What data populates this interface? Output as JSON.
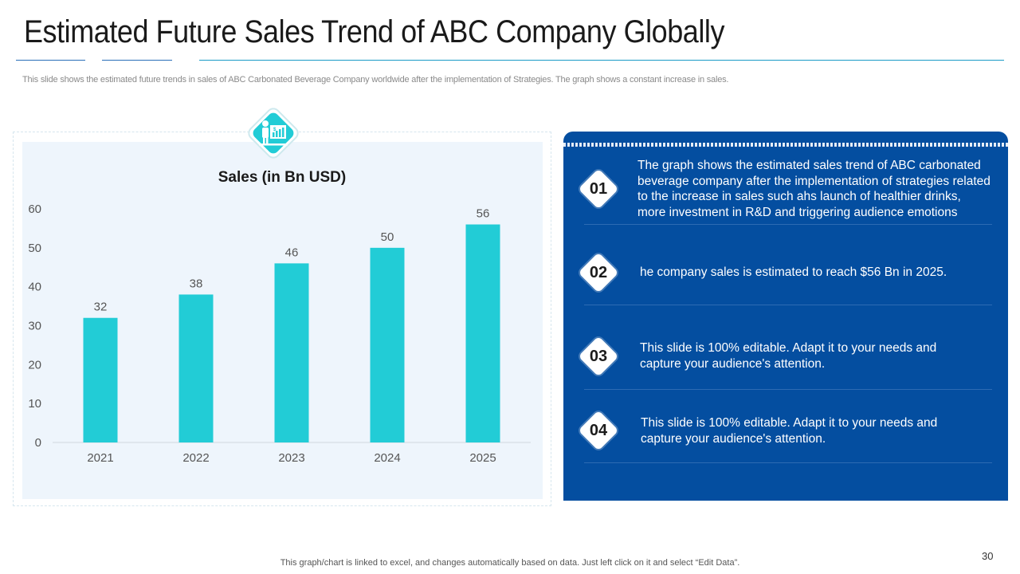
{
  "slide": {
    "title": "Estimated Future Sales Trend of ABC Company Globally",
    "subtitle": "This slide shows the estimated future trends in sales of ABC  Carbonated Beverage Company worldwide after the implementation of Strategies. The graph shows a constant increase in sales.",
    "footer": "This graph/chart is linked to excel,  and changes automatically based on data. Just left click on it and select “Edit Data”.",
    "page_number": "30"
  },
  "icon": {
    "name": "presenter-chart-icon"
  },
  "colors": {
    "bar": "#22ccd6",
    "panel": "#044ea0",
    "accent_rule": "#1a9bc7",
    "diamond": "#22ccd6"
  },
  "chart_data": {
    "type": "bar",
    "title": "Sales (in Bn USD)",
    "xlabel": "",
    "ylabel": "",
    "categories": [
      "2021",
      "2022",
      "2023",
      "2024",
      "2025"
    ],
    "values": [
      32,
      38,
      46,
      50,
      56
    ],
    "data_labels": [
      "32",
      "38",
      "46",
      "50",
      "56"
    ],
    "ylim": [
      0,
      60
    ],
    "yticks": [
      0,
      10,
      20,
      30,
      40,
      50,
      60
    ],
    "ytick_labels": [
      "0",
      "10",
      "20",
      "30",
      "40",
      "50",
      "60"
    ],
    "grid": false,
    "legend": "none"
  },
  "panel": {
    "items": [
      {
        "number": "01",
        "lines": [
          "The graph shows the estimated sales trend of ABC carbonated",
          "beverage company after the implementation of strategies related",
          "to the increase in sales such ahs launch of healthier drinks,",
          "more investment in R&D and triggering audience emotions"
        ]
      },
      {
        "number": "02",
        "lines": [
          "he company sales is estimated to reach $56 Bn in 2025."
        ]
      },
      {
        "number": "03",
        "lines": [
          "This slide is 100% editable. Adapt it to your needs and",
          "capture your audience's attention."
        ]
      },
      {
        "number": "04",
        "lines": [
          "This slide is 100% editable. Adapt it to your needs and",
          "capture your audience's attention."
        ]
      }
    ]
  }
}
